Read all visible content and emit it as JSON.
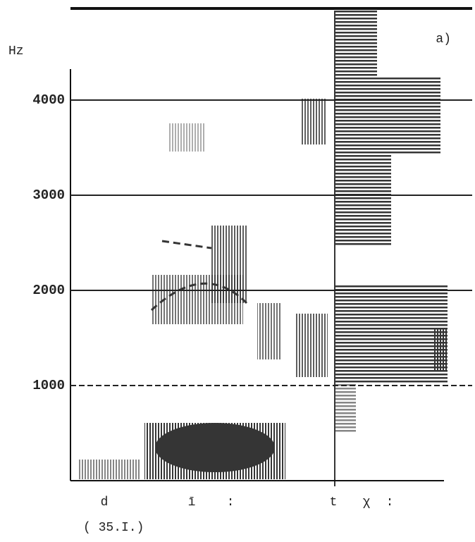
{
  "chart_data": {
    "type": "spectrogram",
    "panel_label": "a)",
    "y_label": "Hz",
    "ylim": [
      0,
      4400
    ],
    "yticks": [
      1000,
      2000,
      3000,
      4000
    ],
    "grid": true,
    "segments": [
      "d",
      "ī",
      ":",
      "t",
      "χ",
      ":"
    ],
    "note": "( 35.I.)"
  }
}
